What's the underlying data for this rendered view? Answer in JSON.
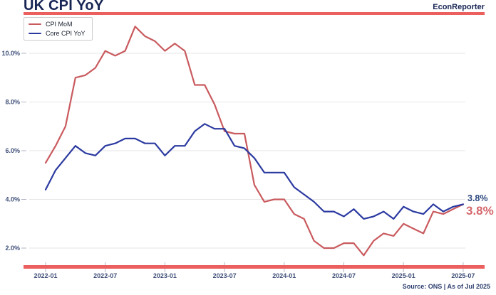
{
  "header": {
    "title": "UK CPI YoY",
    "brand": "EconReporter"
  },
  "legend": {
    "items": [
      {
        "label": "CPI MoM",
        "color": "#c95a5e"
      },
      {
        "label": "Core CPI YoY",
        "color": "#2b3aa0"
      }
    ]
  },
  "annotations": {
    "core_last": {
      "text": "3.8%",
      "color": "#2e4a80"
    },
    "cpi_last": {
      "text": "3.8%",
      "color": "#d4676b"
    }
  },
  "footer": {
    "source": "Source: ONS | As of Jul 2025"
  },
  "colors": {
    "accent_rule_red": "#ec5f5f",
    "title_navy": "#172554",
    "tick_label": "#3e4e78",
    "grid_line": "#e6e6e6",
    "tick_mark": "#b0b6c4"
  },
  "chart_data": {
    "type": "line",
    "title": "UK CPI YoY",
    "x_unit": "month",
    "x_start": "2022-01",
    "x_end": "2025-07",
    "x_tick_labels": [
      "2022-01",
      "2022-07",
      "2023-01",
      "2023-07",
      "2024-01",
      "2024-07",
      "2025-01",
      "2025-07"
    ],
    "x_tick_month_indices": [
      0,
      6,
      12,
      18,
      24,
      30,
      36,
      42
    ],
    "y_tick_labels": [
      "2.0%",
      "4.0%",
      "6.0%",
      "8.0%",
      "10.0%"
    ],
    "y_tick_values": [
      2,
      4,
      6,
      8,
      10
    ],
    "ylim": [
      1.4,
      11.8
    ],
    "grid": "horizontal",
    "legend_position": "top-left",
    "series": [
      {
        "name": "CPI MoM",
        "color": "#c95a5e",
        "values": [
          5.5,
          6.2,
          7.0,
          9.0,
          9.1,
          9.4,
          10.1,
          9.9,
          10.1,
          11.1,
          10.7,
          10.5,
          10.1,
          10.4,
          10.1,
          8.7,
          8.7,
          7.9,
          6.8,
          6.7,
          6.7,
          4.6,
          3.9,
          4.0,
          4.0,
          3.4,
          3.2,
          2.3,
          2.0,
          2.0,
          2.2,
          2.2,
          1.7,
          2.3,
          2.6,
          2.5,
          3.0,
          2.8,
          2.6,
          3.5,
          3.4,
          3.6,
          3.8
        ]
      },
      {
        "name": "Core CPI YoY",
        "color": "#2b3aa0",
        "values": [
          4.4,
          5.2,
          5.7,
          6.2,
          5.9,
          5.8,
          6.2,
          6.3,
          6.5,
          6.5,
          6.3,
          6.3,
          5.8,
          6.2,
          6.2,
          6.8,
          7.1,
          6.9,
          6.9,
          6.2,
          6.1,
          5.7,
          5.1,
          5.1,
          5.1,
          4.5,
          4.2,
          3.9,
          3.5,
          3.5,
          3.3,
          3.6,
          3.2,
          3.3,
          3.5,
          3.2,
          3.7,
          3.5,
          3.4,
          3.8,
          3.5,
          3.7,
          3.8
        ]
      }
    ],
    "last_value_labels": [
      "3.8%",
      "3.8%"
    ]
  }
}
